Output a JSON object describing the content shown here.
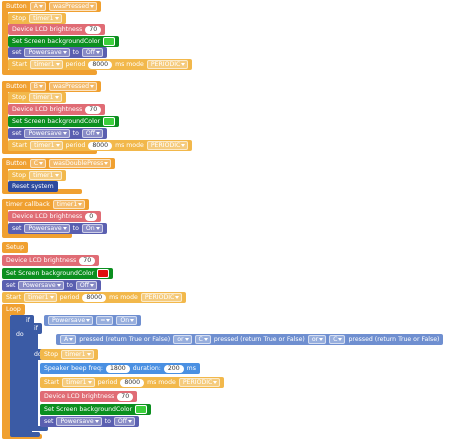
{
  "blocks": [
    {
      "lines": [
        [
          "Button",
          "A",
          "wasPressed"
        ],
        [
          "Stop",
          "timer1"
        ],
        [
          "Device LCD brightness",
          "70"
        ],
        [
          "Set Screen backgroundColor"
        ],
        [
          "set",
          "Powersave",
          "to",
          "Off"
        ],
        [
          "Start",
          "timer1",
          "period",
          "8000",
          "ms mode",
          "PERIODIC"
        ]
      ]
    },
    {
      "lines": [
        [
          "Button",
          "B",
          "wasPressed"
        ],
        [
          "Stop",
          "timer1"
        ],
        [
          "Device LCD brightness",
          "70"
        ],
        [
          "Set Screen backgroundColor"
        ],
        [
          "set",
          "Powersave",
          "to",
          "Off"
        ],
        [
          "Start",
          "timer1",
          "period",
          "8000",
          "ms mode",
          "PERIODIC"
        ]
      ]
    },
    {
      "lines": [
        [
          "Button",
          "C",
          "wasDoublePress"
        ],
        [
          "Stop",
          "timer1"
        ],
        [
          "Reset system"
        ]
      ]
    },
    {
      "lines": [
        [
          "timer callback",
          "timer1"
        ],
        [
          "Device LCD brightness",
          "0"
        ],
        [
          "set",
          "Powersave",
          "to",
          "On"
        ]
      ]
    },
    {
      "lines": [
        [
          "Setup"
        ],
        [
          "Device LCD brightness",
          "70"
        ],
        [
          "Set Screen backgroundColor"
        ],
        [
          "set",
          "Powersave",
          "to",
          "Off"
        ],
        [
          "Start",
          "timer1",
          "period",
          "8000",
          "ms mode",
          "PERIODIC"
        ]
      ]
    },
    {
      "lines": [
        [
          "Loop"
        ],
        [
          "if"
        ],
        [
          "Powersave",
          "=",
          "On"
        ],
        [
          "do"
        ],
        [
          "if"
        ],
        [
          "A",
          "pressed (return True or False)",
          "or",
          "C",
          "pressed (return True or False)",
          "or",
          "C",
          "pressed (return True or False)"
        ],
        [
          "do"
        ],
        [
          "Stop",
          "timer1"
        ],
        [
          "Speaker beep freq:",
          "1800",
          "duration:",
          "200",
          "ms"
        ],
        [
          "Start",
          "timer1",
          "period",
          "8000",
          "ms mode",
          "PERIODIC"
        ],
        [
          "Device LCD brightness",
          "70"
        ],
        [
          "Set Screen backgroundColor"
        ],
        [
          "set",
          "Powersave",
          "to",
          "Off"
        ]
      ]
    }
  ]
}
